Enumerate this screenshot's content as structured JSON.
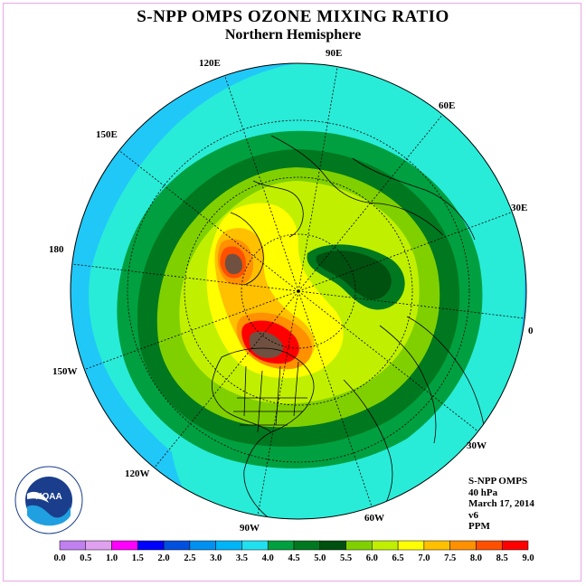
{
  "title": "S-NPP OMPS OZONE MIXING RATIO",
  "subtitle": "Northern Hemisphere",
  "longitude_labels": [
    "90E",
    "60E",
    "30E",
    "0",
    "30W",
    "60W",
    "90W",
    "120W",
    "150W",
    "180",
    "150E",
    "120E"
  ],
  "info": {
    "instrument": "S-NPP OMPS",
    "level": "40 hPa",
    "date": "March 17, 2014",
    "version": "v6",
    "units": "PPM"
  },
  "logo_text": "NOAA",
  "colorbar": {
    "ticks": [
      "0.0",
      "0.5",
      "1.0",
      "1.5",
      "2.0",
      "2.5",
      "3.0",
      "3.5",
      "4.0",
      "4.5",
      "5.0",
      "5.5",
      "6.0",
      "6.5",
      "7.0",
      "7.5",
      "8.0",
      "8.5",
      "9.0"
    ],
    "colors": [
      "#c080f0",
      "#e0a0f0",
      "#ff00ff",
      "#0000ff",
      "#0050e0",
      "#0090f0",
      "#00b4f8",
      "#20e0f0",
      "#00a040",
      "#007820",
      "#005010",
      "#80d000",
      "#c0f000",
      "#ffff00",
      "#ffc000",
      "#ff9000",
      "#ff5000",
      "#ff0000",
      "#a05020",
      "#705040"
    ]
  }
}
